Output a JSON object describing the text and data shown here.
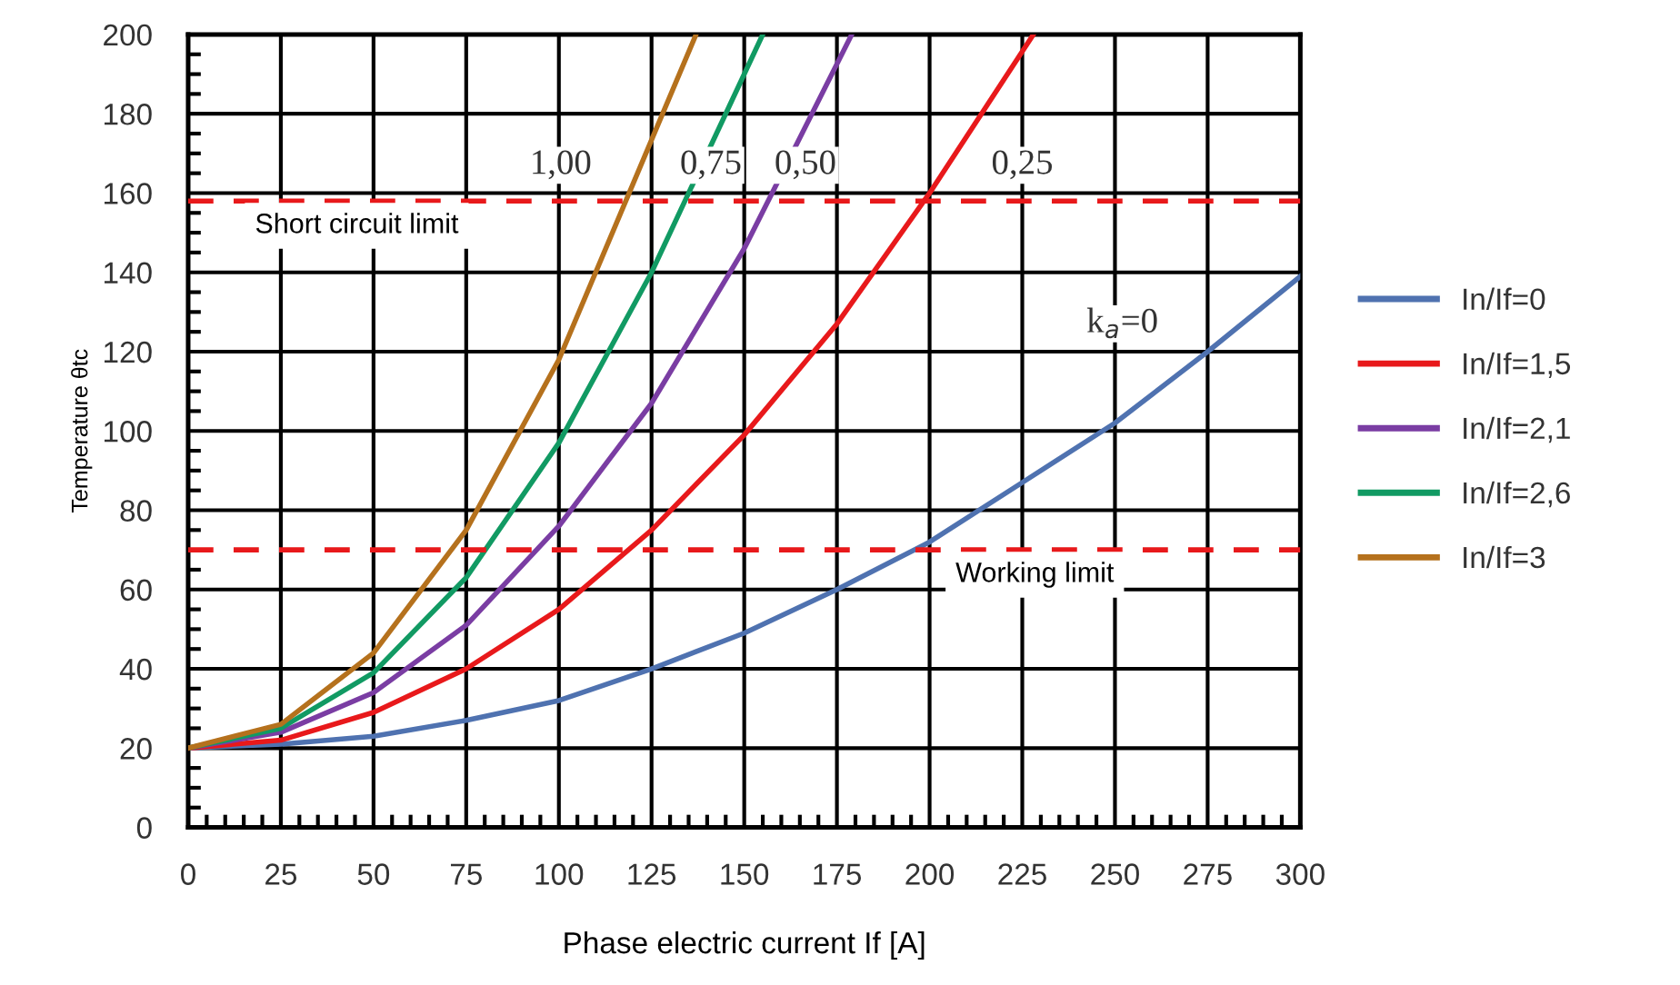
{
  "chart_data": {
    "type": "line",
    "xlabel": "Phase electric current If [A]",
    "ylabel": "Temperature θtc",
    "xlim": [
      0,
      300
    ],
    "xticks": [
      0,
      25,
      50,
      75,
      100,
      125,
      150,
      175,
      200,
      225,
      250,
      275,
      300
    ],
    "ylim": [
      0,
      200
    ],
    "yticks": [
      0,
      20,
      40,
      60,
      80,
      100,
      120,
      140,
      160,
      180,
      200
    ],
    "grid": true,
    "legend": "right",
    "line_style": "solid",
    "marker": "none",
    "series": [
      {
        "name": "In/If=0",
        "color": "#4f72b0",
        "x": [
          0,
          25,
          50,
          75,
          100,
          125,
          150,
          175,
          200,
          225,
          250,
          275,
          300
        ],
        "values": [
          20,
          21,
          23,
          27,
          32,
          40,
          49,
          60,
          72,
          87,
          102,
          120,
          139
        ]
      },
      {
        "name": "In/If=1,5",
        "color": "#e8191b",
        "x": [
          0,
          25,
          50,
          75,
          100,
          125,
          150,
          175,
          200,
          228
        ],
        "values": [
          20,
          22,
          29,
          40,
          55,
          75,
          99,
          127,
          160,
          200
        ]
      },
      {
        "name": "In/If=2,1",
        "color": "#7a3da3",
        "x": [
          0,
          25,
          50,
          75,
          100,
          125,
          150,
          179
        ],
        "values": [
          20,
          24,
          34,
          51,
          76,
          107,
          146,
          200
        ]
      },
      {
        "name": "In/If=2,6",
        "color": "#119a63",
        "x": [
          0,
          25,
          50,
          75,
          100,
          125,
          155
        ],
        "values": [
          20,
          25,
          39,
          63,
          97,
          140,
          200
        ]
      },
      {
        "name": "In/If=3",
        "color": "#b5711d",
        "x": [
          0,
          25,
          50,
          75,
          100,
          137
        ],
        "values": [
          20,
          26,
          44,
          75,
          118,
          200
        ]
      }
    ],
    "ref_lines": [
      {
        "axis": "y",
        "value": 158,
        "label": "Short circuit limit",
        "color": "#e8191b",
        "line_style": "dashed"
      },
      {
        "axis": "y",
        "value": 70,
        "label": "Working limit",
        "color": "#e8191b",
        "line_style": "dashed"
      }
    ],
    "annotations": [
      "1,00",
      "0,75",
      "0,50",
      "0,25",
      "k$_{a}$=0"
    ]
  }
}
